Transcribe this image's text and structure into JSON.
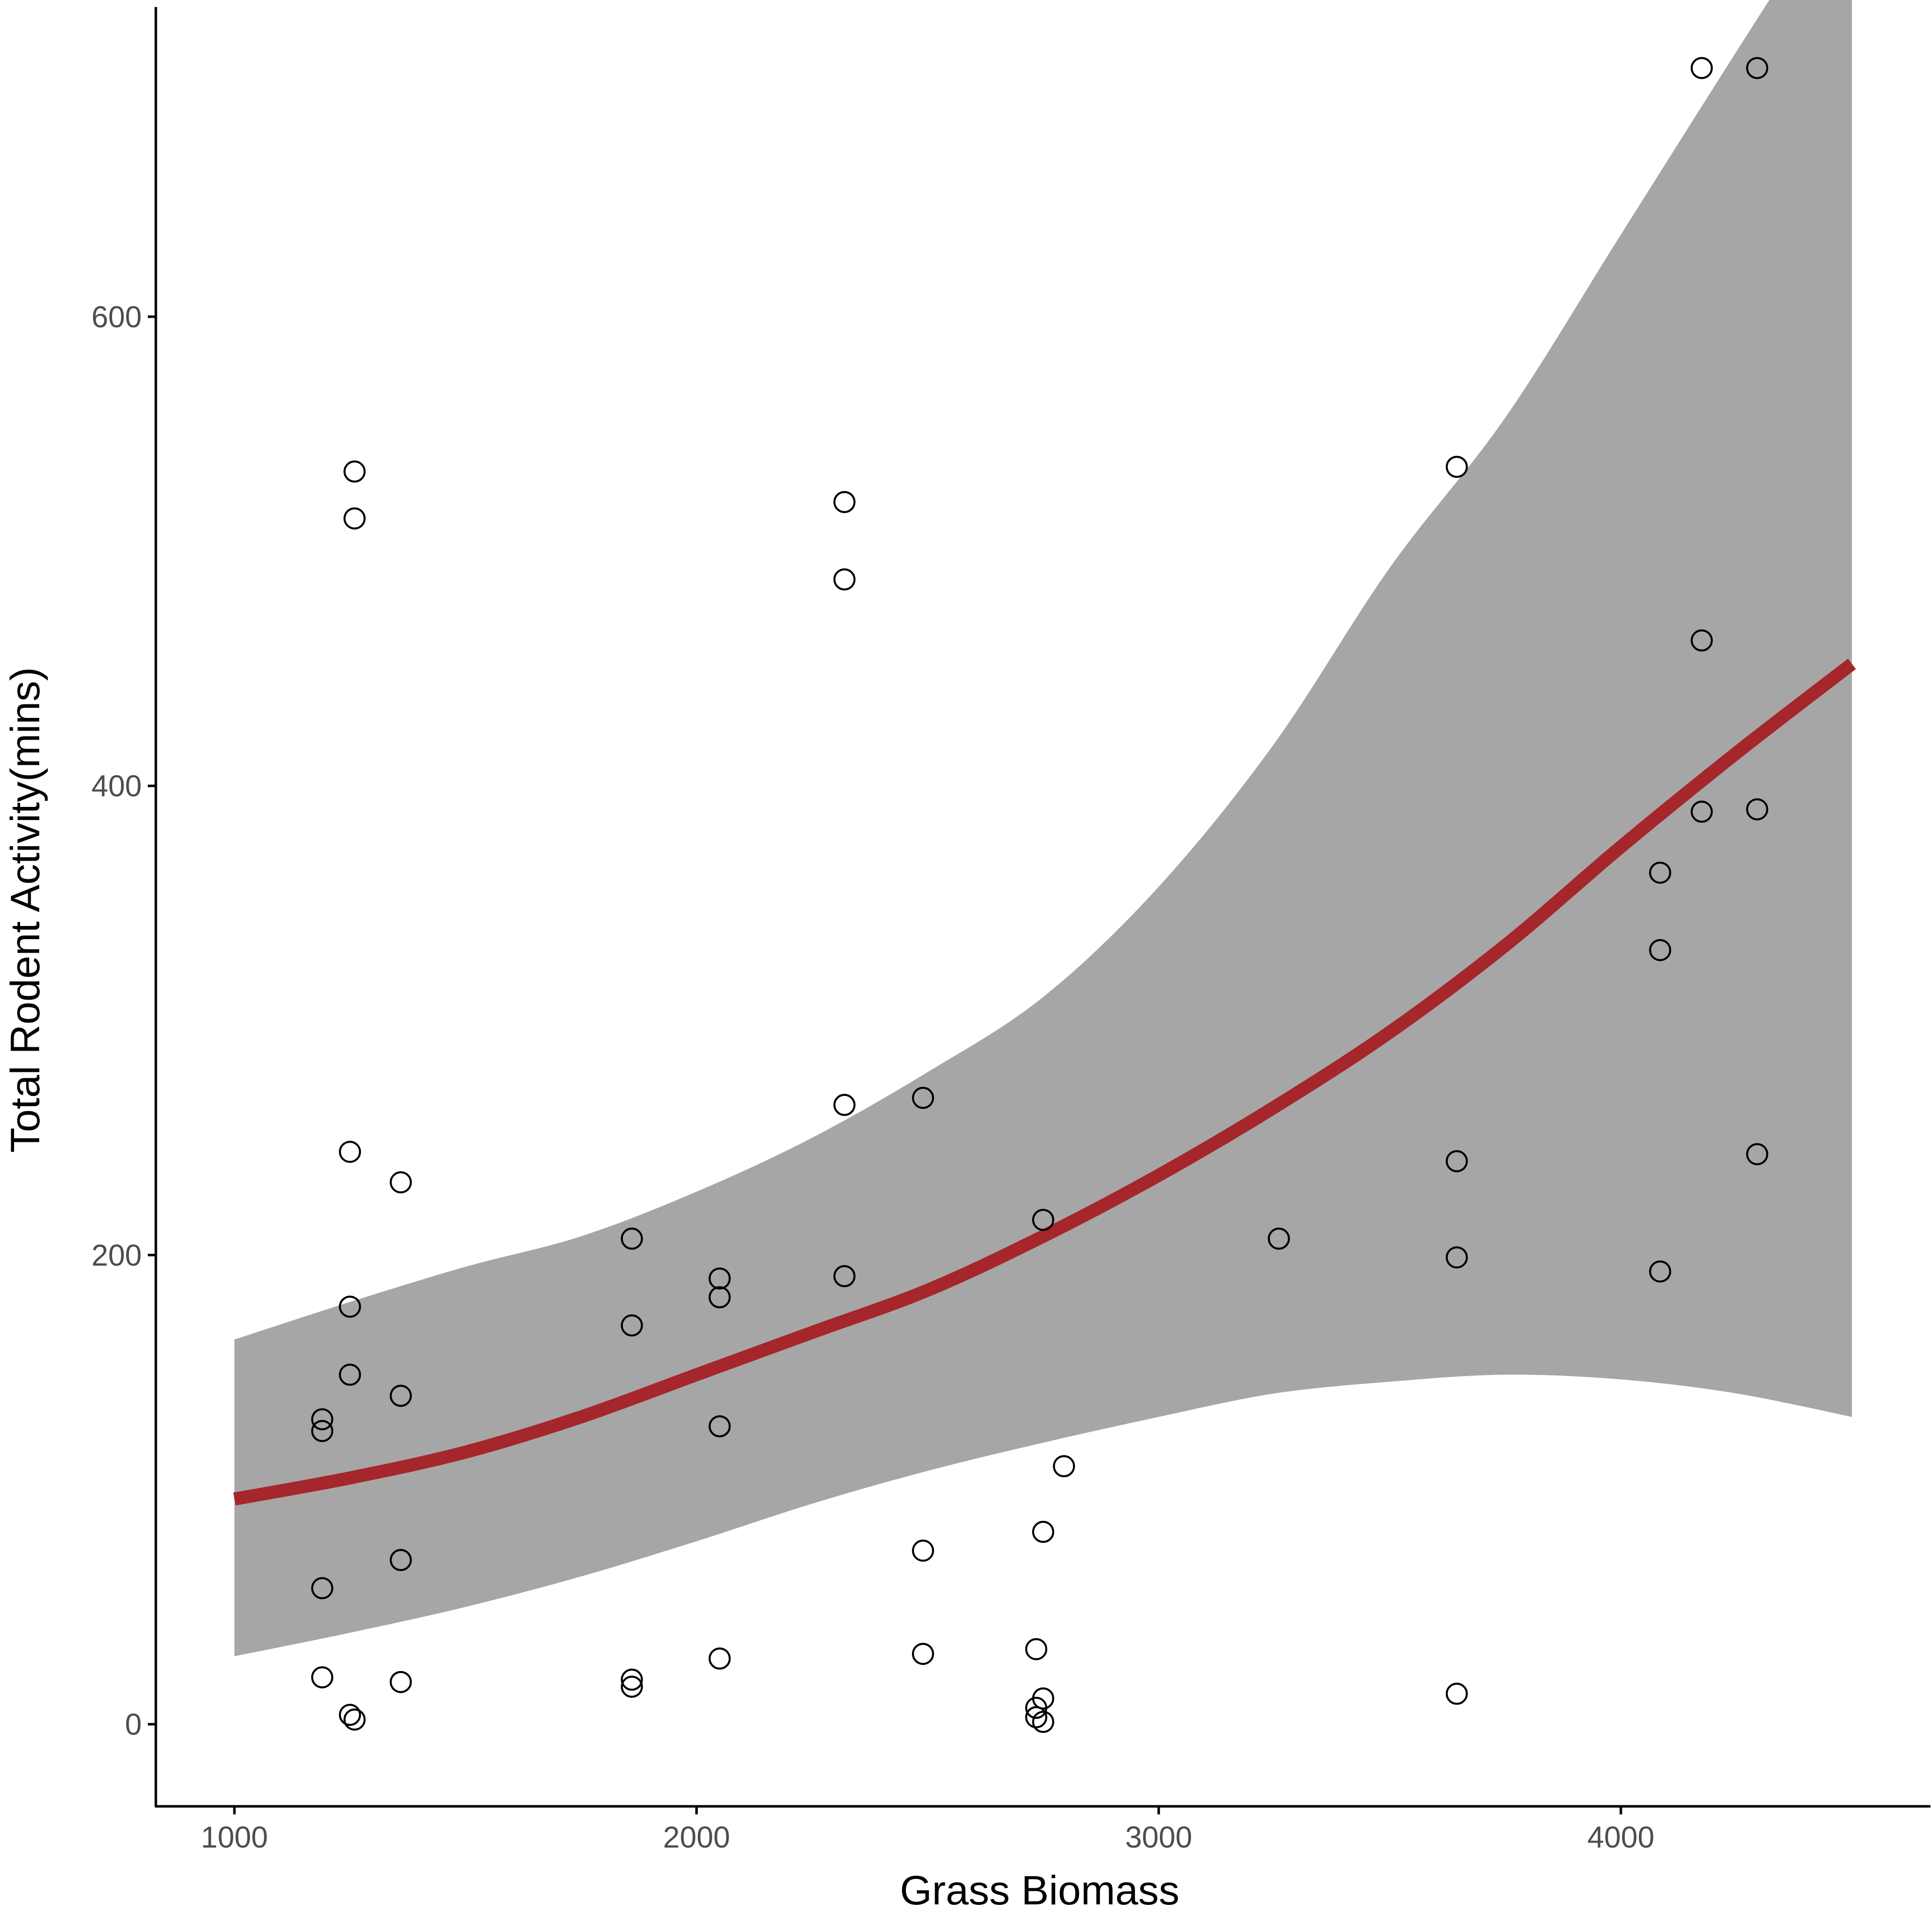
{
  "chart_data": {
    "type": "scatter",
    "xlabel": "Grass Biomass",
    "ylabel": "Total Rodent Activity(mins)",
    "xlim": [
      830,
      4670
    ],
    "ylim": [
      -35,
      735
    ],
    "x_ticks": [
      1000,
      2000,
      3000,
      4000
    ],
    "y_ticks": [
      0,
      200,
      400,
      600
    ],
    "x_tick_labels": [
      "1000",
      "2000",
      "3000",
      "4000"
    ],
    "y_tick_labels": [
      "0",
      "200",
      "400",
      "600"
    ],
    "grid": false,
    "colors": {
      "fit_line": "#a5262b",
      "confidence_band": "#a6a6a6",
      "points": "#000000"
    },
    "points": [
      {
        "x": 1190,
        "y": 130
      },
      {
        "x": 1190,
        "y": 125
      },
      {
        "x": 1190,
        "y": 58
      },
      {
        "x": 1190,
        "y": 20
      },
      {
        "x": 1250,
        "y": 244
      },
      {
        "x": 1250,
        "y": 178
      },
      {
        "x": 1250,
        "y": 149
      },
      {
        "x": 1250,
        "y": 4
      },
      {
        "x": 1260,
        "y": 534
      },
      {
        "x": 1260,
        "y": 514
      },
      {
        "x": 1260,
        "y": 2
      },
      {
        "x": 1360,
        "y": 231
      },
      {
        "x": 1360,
        "y": 140
      },
      {
        "x": 1360,
        "y": 70
      },
      {
        "x": 1360,
        "y": 18
      },
      {
        "x": 1860,
        "y": 207
      },
      {
        "x": 1860,
        "y": 170
      },
      {
        "x": 1860,
        "y": 19
      },
      {
        "x": 1860,
        "y": 16
      },
      {
        "x": 2050,
        "y": 190
      },
      {
        "x": 2050,
        "y": 182
      },
      {
        "x": 2050,
        "y": 127
      },
      {
        "x": 2050,
        "y": 28
      },
      {
        "x": 2320,
        "y": 521
      },
      {
        "x": 2320,
        "y": 488
      },
      {
        "x": 2320,
        "y": 264
      },
      {
        "x": 2320,
        "y": 191
      },
      {
        "x": 2490,
        "y": 267
      },
      {
        "x": 2490,
        "y": 74
      },
      {
        "x": 2490,
        "y": 30
      },
      {
        "x": 2735,
        "y": 32
      },
      {
        "x": 2735,
        "y": 7
      },
      {
        "x": 2735,
        "y": 3
      },
      {
        "x": 2750,
        "y": 215
      },
      {
        "x": 2750,
        "y": 82
      },
      {
        "x": 2750,
        "y": 11
      },
      {
        "x": 2750,
        "y": 1
      },
      {
        "x": 2795,
        "y": 110
      },
      {
        "x": 3260,
        "y": 207
      },
      {
        "x": 3645,
        "y": 536
      },
      {
        "x": 3645,
        "y": 240
      },
      {
        "x": 3645,
        "y": 199
      },
      {
        "x": 3645,
        "y": 13
      },
      {
        "x": 4085,
        "y": 363
      },
      {
        "x": 4085,
        "y": 330
      },
      {
        "x": 4085,
        "y": 193
      },
      {
        "x": 4175,
        "y": 706
      },
      {
        "x": 4175,
        "y": 462
      },
      {
        "x": 4175,
        "y": 389
      },
      {
        "x": 4295,
        "y": 706
      },
      {
        "x": 4295,
        "y": 390
      },
      {
        "x": 4295,
        "y": 243
      }
    ],
    "fit": {
      "x": [
        1000,
        1250,
        1500,
        1750,
        2000,
        2250,
        2500,
        2750,
        3000,
        3250,
        3500,
        3750,
        4000,
        4250,
        4500
      ],
      "y": [
        96,
        105,
        116,
        131,
        149,
        167,
        185,
        208,
        234,
        263,
        295,
        332,
        374,
        414,
        452
      ],
      "lower": [
        29,
        39,
        50,
        63,
        78,
        94,
        108,
        120,
        131,
        141,
        146,
        149,
        147,
        141,
        131
      ],
      "upper": [
        164,
        180,
        195,
        208,
        227,
        250,
        278,
        310,
        357,
        418,
        493,
        557,
        635,
        713,
        790
      ]
    }
  }
}
